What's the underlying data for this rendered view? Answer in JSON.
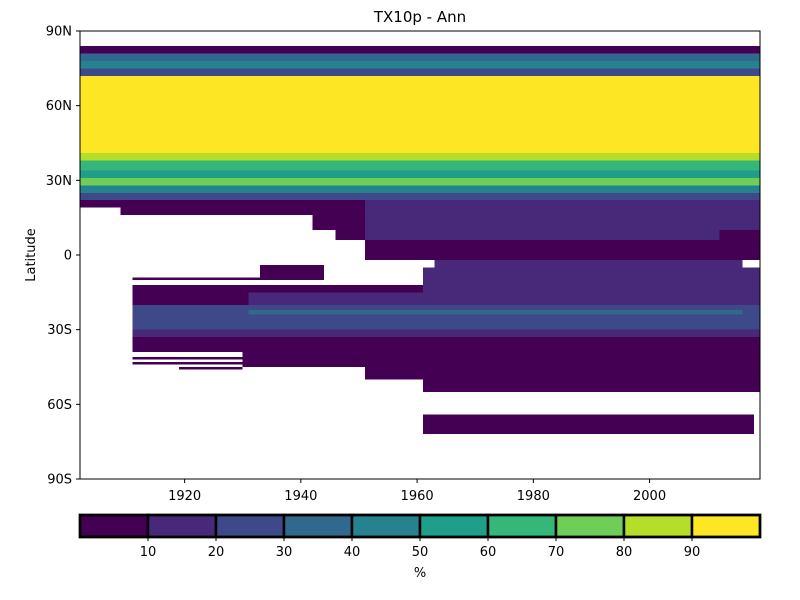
{
  "chart_data": {
    "type": "heatmap",
    "title": "TX10p - Ann",
    "xlabel": "",
    "ylabel": "Latitude",
    "xlim": [
      1902,
      2019
    ],
    "ylim": [
      -90,
      90
    ],
    "x_ticks": [
      1920,
      1940,
      1960,
      1980,
      2000
    ],
    "x_tick_labels": [
      "1920",
      "1940",
      "1960",
      "1980",
      "2000"
    ],
    "y_ticks": [
      90,
      60,
      30,
      0,
      -30,
      -60,
      -90
    ],
    "y_tick_labels": [
      "90N",
      "60N",
      "30N",
      "0",
      "30S",
      "60S",
      "90S"
    ],
    "colorbar": {
      "label": "%",
      "ticks": [
        "10",
        "20",
        "30",
        "40",
        "50",
        "60",
        "70",
        "80",
        "90"
      ],
      "bins": [
        0,
        10,
        20,
        30,
        40,
        50,
        60,
        70,
        80,
        90,
        100
      ],
      "colors": [
        "#440154",
        "#482878",
        "#3e4989",
        "#31688e",
        "#26828e",
        "#1f9e89",
        "#35b779",
        "#6ece58",
        "#b5de2b",
        "#fde725"
      ]
    },
    "cells": [
      {
        "x0": 1902,
        "x1": 2019,
        "y0": 81,
        "y1": 84,
        "v": 5
      },
      {
        "x0": 1902,
        "x1": 2019,
        "y0": 78,
        "y1": 81,
        "v": 35
      },
      {
        "x0": 1902,
        "x1": 2019,
        "y0": 75,
        "y1": 78,
        "v": 45
      },
      {
        "x0": 1902,
        "x1": 2019,
        "y0": 72,
        "y1": 75,
        "v": 25
      },
      {
        "x0": 1902,
        "x1": 2019,
        "y0": 41,
        "y1": 72,
        "v": 95
      },
      {
        "x0": 1902,
        "x1": 2019,
        "y0": 38,
        "y1": 41,
        "v": 85
      },
      {
        "x0": 1902,
        "x1": 2019,
        "y0": 34,
        "y1": 38,
        "v": 65
      },
      {
        "x0": 1902,
        "x1": 2019,
        "y0": 31,
        "y1": 34,
        "v": 55
      },
      {
        "x0": 1902,
        "x1": 2019,
        "y0": 28,
        "y1": 31,
        "v": 75
      },
      {
        "x0": 1902,
        "x1": 2019,
        "y0": 25,
        "y1": 28,
        "v": 45
      },
      {
        "x0": 1902,
        "x1": 2019,
        "y0": 22,
        "y1": 25,
        "v": 25
      },
      {
        "x0": 1902,
        "x1": 1951,
        "y0": 19,
        "y1": 22,
        "v": 5
      },
      {
        "x0": 1951,
        "x1": 2019,
        "y0": 19,
        "y1": 22,
        "v": 15
      },
      {
        "x0": 1909,
        "x1": 1951,
        "y0": 16,
        "y1": 19,
        "v": 5
      },
      {
        "x0": 1951,
        "x1": 2019,
        "y0": 16,
        "y1": 19,
        "v": 15
      },
      {
        "x0": 1942,
        "x1": 1951,
        "y0": 10,
        "y1": 16,
        "v": 5
      },
      {
        "x0": 1951,
        "x1": 2019,
        "y0": 10,
        "y1": 16,
        "v": 15
      },
      {
        "x0": 1946,
        "x1": 1951,
        "y0": 6,
        "y1": 10,
        "v": 5
      },
      {
        "x0": 1951,
        "x1": 2012,
        "y0": 6,
        "y1": 10,
        "v": 15
      },
      {
        "x0": 2012,
        "x1": 2019,
        "y0": 6,
        "y1": 10,
        "v": 5
      },
      {
        "x0": 1951,
        "x1": 2019,
        "y0": -2,
        "y1": 6,
        "v": 5
      },
      {
        "x0": 1963,
        "x1": 2016,
        "y0": -5,
        "y1": -2,
        "v": 15
      },
      {
        "x0": 1961,
        "x1": 2019,
        "y0": -15,
        "y1": -5,
        "v": 15
      },
      {
        "x0": 1933,
        "x1": 1944,
        "y0": -10,
        "y1": -4,
        "v": 5
      },
      {
        "x0": 1911,
        "x1": 1933,
        "y0": -10,
        "y1": -9,
        "v": 5
      },
      {
        "x0": 1911,
        "x1": 1961,
        "y0": -15,
        "y1": -12,
        "v": 5
      },
      {
        "x0": 1911,
        "x1": 1931,
        "y0": -20,
        "y1": -15,
        "v": 5
      },
      {
        "x0": 1931,
        "x1": 2019,
        "y0": -20,
        "y1": -15,
        "v": 15
      },
      {
        "x0": 1911,
        "x1": 2019,
        "y0": -30,
        "y1": -20,
        "v": 25
      },
      {
        "x0": 1931,
        "x1": 2016,
        "y0": -24,
        "y1": -22,
        "v": 35
      },
      {
        "x0": 1911,
        "x1": 2019,
        "y0": -33,
        "y1": -30,
        "v": 15
      },
      {
        "x0": 1911,
        "x1": 2019,
        "y0": -39,
        "y1": -33,
        "v": 5
      },
      {
        "x0": 1930,
        "x1": 2019,
        "y0": -45,
        "y1": -39,
        "v": 5
      },
      {
        "x0": 1911,
        "x1": 1930,
        "y0": -42,
        "y1": -41,
        "v": 5
      },
      {
        "x0": 1911,
        "x1": 1930,
        "y0": -44,
        "y1": -43,
        "v": 5
      },
      {
        "x0": 1919,
        "x1": 1930,
        "y0": -46,
        "y1": -45,
        "v": 5
      },
      {
        "x0": 1951,
        "x1": 2019,
        "y0": -50,
        "y1": -45,
        "v": 5
      },
      {
        "x0": 1961,
        "x1": 2019,
        "y0": -55,
        "y1": -50,
        "v": 5
      },
      {
        "x0": 1961,
        "x1": 2018,
        "y0": -72,
        "y1": -64,
        "v": 5
      }
    ]
  }
}
